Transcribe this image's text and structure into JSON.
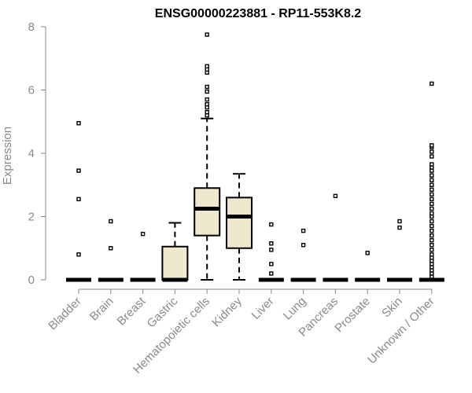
{
  "chart_data": {
    "type": "boxplot",
    "title": "ENSG00000223881 - RP11-553K8.2",
    "xlabel": "",
    "ylabel": "Expression",
    "ylim": [
      0,
      8
    ],
    "yticks": [
      0,
      2,
      4,
      6,
      8
    ],
    "grid": false,
    "box_fill": "#efe8cf",
    "box_stroke": "#000000",
    "axis_color": "#8a8a8a",
    "categories": [
      "Bladder",
      "Brain",
      "Breast",
      "Gastric",
      "Hematopoietic cells",
      "Kidney",
      "Liver",
      "Lung",
      "Pancreas",
      "Prostate",
      "Skin",
      "Unknown / Other"
    ],
    "boxes": [
      {
        "q1": 0,
        "median": 0,
        "q3": 0,
        "whisker_low": 0,
        "whisker_high": 0,
        "outliers": [
          0.8,
          2.55,
          3.45,
          4.95
        ]
      },
      {
        "q1": 0,
        "median": 0,
        "q3": 0,
        "whisker_low": 0,
        "whisker_high": 0,
        "outliers": [
          1.0,
          1.85
        ]
      },
      {
        "q1": 0,
        "median": 0,
        "q3": 0,
        "whisker_low": 0,
        "whisker_high": 0,
        "outliers": [
          1.45
        ]
      },
      {
        "q1": 0,
        "median": 0,
        "q3": 1.05,
        "whisker_low": 0,
        "whisker_high": 1.8,
        "outliers": []
      },
      {
        "q1": 1.4,
        "median": 2.25,
        "q3": 2.9,
        "whisker_low": 0,
        "whisker_high": 5.1,
        "outliers": [
          5.2,
          5.3,
          5.45,
          5.55,
          5.7,
          5.95,
          6.1,
          6.55,
          6.65,
          6.75,
          7.75
        ]
      },
      {
        "q1": 1.0,
        "median": 2.0,
        "q3": 2.6,
        "whisker_low": 0,
        "whisker_high": 3.35,
        "outliers": []
      },
      {
        "q1": 0,
        "median": 0,
        "q3": 0,
        "whisker_low": 0,
        "whisker_high": 0,
        "outliers": [
          0.2,
          0.5,
          0.95,
          1.15,
          1.75
        ]
      },
      {
        "q1": 0,
        "median": 0,
        "q3": 0,
        "whisker_low": 0,
        "whisker_high": 0,
        "outliers": [
          1.1,
          1.55
        ]
      },
      {
        "q1": 0,
        "median": 0,
        "q3": 0,
        "whisker_low": 0,
        "whisker_high": 0,
        "outliers": [
          2.65
        ]
      },
      {
        "q1": 0,
        "median": 0,
        "q3": 0,
        "whisker_low": 0,
        "whisker_high": 0,
        "outliers": [
          0.85
        ]
      },
      {
        "q1": 0,
        "median": 0,
        "q3": 0,
        "whisker_low": 0,
        "whisker_high": 0,
        "outliers": [
          1.65,
          1.85
        ]
      },
      {
        "q1": 0,
        "median": 0,
        "q3": 0,
        "whisker_low": 0,
        "whisker_high": 0,
        "outliers": [
          0.1,
          0.2,
          0.3,
          0.4,
          0.5,
          0.6,
          0.7,
          0.8,
          0.95,
          1.1,
          1.25,
          1.4,
          1.55,
          1.7,
          1.85,
          2.0,
          2.1,
          2.25,
          2.4,
          2.55,
          2.7,
          2.85,
          3.0,
          3.15,
          3.3,
          3.45,
          3.55,
          3.65,
          3.9,
          4.05,
          4.2,
          4.25,
          6.2
        ]
      }
    ]
  }
}
